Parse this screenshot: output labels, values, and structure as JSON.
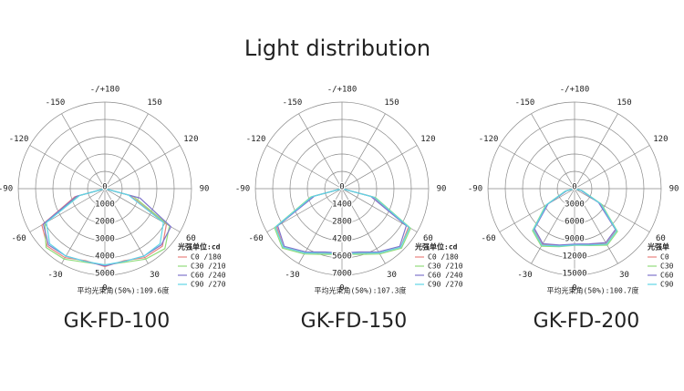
{
  "title": "Light distribution",
  "chart_data": [
    {
      "type": "polar",
      "x": [
        -90,
        -75,
        -60,
        -45,
        -30,
        -15,
        0,
        15,
        30,
        45,
        60,
        75,
        90
      ],
      "rlim": [
        0,
        5000
      ],
      "rticks": [
        0,
        1000,
        2000,
        3000,
        4000,
        5000
      ],
      "angle_ticks": [
        {
          "value": 180,
          "label": "-/+180"
        },
        -150,
        150,
        -120,
        120,
        -90,
        90,
        -60,
        60,
        -30,
        30,
        0
      ],
      "legend_title": "光强单位:cd",
      "series": [
        {
          "name": "C0  /180",
          "color": "#e8837e",
          "values": [
            0,
            1800,
            4200,
            4700,
            4600,
            4300,
            4500,
            4300,
            4600,
            4700,
            4100,
            1500,
            0
          ]
        },
        {
          "name": "C30 /210",
          "color": "#92dd7c",
          "values": [
            0,
            1600,
            4000,
            4800,
            4700,
            4400,
            4400,
            4400,
            4700,
            4900,
            4300,
            1700,
            0
          ]
        },
        {
          "name": "C60 /240",
          "color": "#7e74cc",
          "values": [
            0,
            1700,
            4100,
            4600,
            4500,
            4350,
            4450,
            4350,
            4500,
            4600,
            4400,
            2100,
            0
          ]
        },
        {
          "name": "C90 /270",
          "color": "#5fd6e6",
          "values": [
            0,
            1500,
            3900,
            4500,
            4500,
            4350,
            4400,
            4350,
            4500,
            4500,
            3900,
            1400,
            0
          ]
        }
      ],
      "note": "平均光束角(50%):109.6度",
      "caption": "GK-FD-100"
    },
    {
      "type": "polar",
      "x": [
        -90,
        -75,
        -60,
        -45,
        -30,
        -15,
        0,
        15,
        30,
        45,
        60,
        75,
        90
      ],
      "rlim": [
        0,
        7000
      ],
      "rticks": [
        0,
        1400,
        2800,
        4200,
        5600,
        7000
      ],
      "angle_ticks": [
        {
          "value": 180,
          "label": "-/+180"
        },
        -150,
        150,
        -120,
        120,
        -90,
        90,
        -60,
        60,
        -30,
        30,
        0
      ],
      "legend_title": "光强单位:cd",
      "series": [
        {
          "name": "C0  /180",
          "color": "#e8837e",
          "values": [
            0,
            2400,
            6100,
            6700,
            6000,
            5400,
            5200,
            5400,
            6000,
            6700,
            6200,
            2600,
            0
          ]
        },
        {
          "name": "C30 /210",
          "color": "#92dd7c",
          "values": [
            0,
            2600,
            6300,
            6800,
            6100,
            5500,
            5300,
            5500,
            6100,
            6800,
            6400,
            2800,
            0
          ]
        },
        {
          "name": "C60 /240",
          "color": "#7e74cc",
          "values": [
            0,
            2300,
            6000,
            6600,
            5900,
            5300,
            5200,
            5300,
            5900,
            6600,
            6000,
            2400,
            0
          ]
        },
        {
          "name": "C90 /270",
          "color": "#5fd6e6",
          "values": [
            0,
            2500,
            6200,
            6700,
            6000,
            5400,
            5250,
            5400,
            6000,
            6700,
            6300,
            2700,
            0
          ]
        }
      ],
      "note": "平均光束角(50%):107.3度",
      "caption": "GK-FD-150"
    },
    {
      "type": "polar",
      "x": [
        -90,
        -75,
        -60,
        -45,
        -30,
        -15,
        0,
        15,
        30,
        45,
        60,
        75,
        90
      ],
      "rlim": [
        0,
        15000
      ],
      "rticks": [
        0,
        3000,
        6000,
        9000,
        12000,
        15000
      ],
      "angle_ticks": [
        {
          "value": 180,
          "label": "-/+180"
        },
        -150,
        150,
        -120,
        120,
        -90,
        90,
        -60,
        60,
        -30,
        30,
        0
      ],
      "legend_title": "光强单",
      "series": [
        {
          "name": "C0",
          "color": "#e8837e",
          "values": [
            0,
            1500,
            5500,
            10000,
            11200,
            10200,
            9700,
            10000,
            11000,
            10200,
            5000,
            1200,
            0
          ]
        },
        {
          "name": "C30",
          "color": "#92dd7c",
          "values": [
            0,
            1700,
            5800,
            10300,
            11500,
            10400,
            9800,
            10200,
            11300,
            10500,
            5400,
            1400,
            0
          ]
        },
        {
          "name": "C60",
          "color": "#7e74cc",
          "values": [
            0,
            1400,
            5300,
            9800,
            11000,
            10100,
            9600,
            9900,
            10800,
            10000,
            4800,
            1100,
            0
          ]
        },
        {
          "name": "C90",
          "color": "#5fd6e6",
          "values": [
            0,
            1600,
            5600,
            10100,
            11300,
            10300,
            9750,
            10100,
            11100,
            10300,
            5200,
            1300,
            0
          ]
        }
      ],
      "note": "平均光束角(50%):100.7度",
      "caption": "GK-FD-200"
    }
  ]
}
